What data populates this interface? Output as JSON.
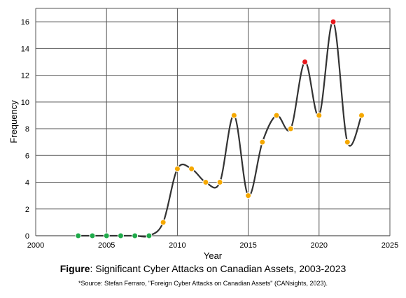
{
  "chart_data": {
    "type": "line",
    "title": "",
    "xlabel": "Year",
    "ylabel": "Frequency",
    "xlim": [
      2000,
      2025
    ],
    "ylim": [
      0,
      17
    ],
    "x_ticks": [
      2000,
      2005,
      2010,
      2015,
      2020,
      2025
    ],
    "y_ticks": [
      0,
      2,
      4,
      6,
      8,
      10,
      12,
      14,
      16
    ],
    "grid": true,
    "smooth": true,
    "line_color": "#333333",
    "x": [
      2003,
      2004,
      2005,
      2006,
      2007,
      2008,
      2009,
      2010,
      2011,
      2012,
      2013,
      2014,
      2015,
      2016,
      2017,
      2018,
      2019,
      2020,
      2021,
      2022,
      2023
    ],
    "values": [
      0,
      0,
      0,
      0,
      0,
      0,
      1,
      5,
      5,
      4,
      4,
      9,
      3,
      7,
      9,
      8,
      13,
      9,
      16,
      7,
      9
    ],
    "marker_colors": [
      "#1faa4a",
      "#1faa4a",
      "#1faa4a",
      "#1faa4a",
      "#1faa4a",
      "#1faa4a",
      "#f5a800",
      "#f5a800",
      "#f5a800",
      "#f5a800",
      "#f5a800",
      "#f5a800",
      "#f5a800",
      "#f5a800",
      "#f5a800",
      "#f5a800",
      "#e8161b",
      "#f5a800",
      "#e8161b",
      "#f5a800",
      "#f5a800"
    ]
  },
  "caption": {
    "label": "Figure",
    "text": ": Significant Cyber Attacks on Canadian Assets, 2003-2023",
    "source": "*Source: Stefan Ferraro, \"Foreign Cyber Attacks on Canadian Assets\" (CANsights, 2023)."
  }
}
